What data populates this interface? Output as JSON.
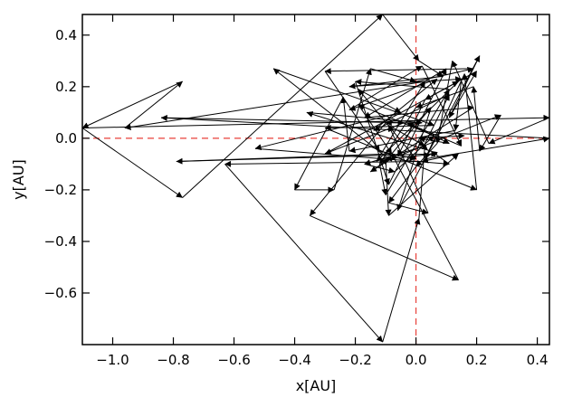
{
  "chart_data": {
    "type": "line",
    "title": "",
    "xlabel": "x[AU]",
    "ylabel": "y[AU]",
    "xlim": [
      -1.1,
      0.44
    ],
    "ylim": [
      -0.8,
      0.48
    ],
    "x_ticks": [
      -1.0,
      -0.8,
      -0.6,
      -0.4,
      -0.2,
      0.0,
      0.2,
      0.4
    ],
    "x_tick_labels": [
      "−1.0",
      "−0.8",
      "−0.6",
      "−0.4",
      "−0.2",
      "0.0",
      "0.2",
      "0.4"
    ],
    "y_ticks": [
      -0.6,
      -0.4,
      -0.2,
      0.0,
      0.2,
      0.4
    ],
    "y_tick_labels": [
      "−0.6",
      "−0.4",
      "−0.2",
      "0.0",
      "0.2",
      "0.4"
    ],
    "grid": false,
    "reference_lines": {
      "x": 0.0,
      "y": 0.0,
      "color": "#e8413a",
      "style": "dashed"
    },
    "series": [
      {
        "color": "#000000",
        "arrows": true,
        "points": [
          [
            -1.1,
            0.04
          ],
          [
            -0.77,
            -0.23
          ],
          [
            -0.11,
            0.48
          ],
          [
            0.01,
            0.3
          ],
          [
            0.09,
            0.24
          ],
          [
            -0.22,
            0.2
          ],
          [
            0.15,
            0.23
          ],
          [
            0.13,
            0.03
          ],
          [
            -0.22,
            -0.05
          ],
          [
            -0.24,
            0.16
          ],
          [
            -0.4,
            -0.2
          ],
          [
            -0.27,
            -0.2
          ],
          [
            -0.15,
            0.27
          ],
          [
            0.0,
            0.22
          ],
          [
            0.19,
            0.27
          ],
          [
            -0.3,
            0.26
          ],
          [
            -0.12,
            -0.05
          ],
          [
            0.0,
            -0.08
          ],
          [
            -0.19,
            0.19
          ],
          [
            -0.05,
            0.1
          ],
          [
            -0.53,
            -0.04
          ],
          [
            0.11,
            -0.1
          ],
          [
            0.05,
            -0.05
          ],
          [
            -0.36,
            0.1
          ],
          [
            0.02,
            0.06
          ],
          [
            -0.1,
            0.06
          ],
          [
            -0.35,
            -0.3
          ],
          [
            0.14,
            -0.55
          ],
          [
            -0.08,
            -0.06
          ],
          [
            0.05,
            0.12
          ],
          [
            -0.06,
            -0.28
          ],
          [
            0.21,
            0.32
          ],
          [
            0.11,
            0.08
          ],
          [
            0.2,
            0.26
          ],
          [
            0.03,
            0.15
          ],
          [
            -0.06,
            -0.07
          ],
          [
            0.28,
            0.09
          ],
          [
            0.21,
            -0.05
          ],
          [
            0.19,
            0.2
          ],
          [
            0.0,
            0.12
          ],
          [
            -0.12,
            -0.1
          ],
          [
            -0.1,
            -0.22
          ],
          [
            0.11,
            0.19
          ],
          [
            -0.2,
            0.22
          ],
          [
            -0.09,
            -0.18
          ],
          [
            0.1,
            0.27
          ],
          [
            -0.17,
            0.08
          ],
          [
            0.19,
            0.12
          ],
          [
            -0.15,
            -0.13
          ],
          [
            -0.09,
            -0.08
          ],
          [
            -0.47,
            0.27
          ],
          [
            0.06,
            0.05
          ],
          [
            -0.3,
            0.04
          ],
          [
            0.2,
            -0.2
          ],
          [
            0.16,
            0.25
          ],
          [
            0.03,
            -0.08
          ],
          [
            0.44,
            0.0
          ],
          [
            -0.84,
            0.08
          ],
          [
            -0.04,
            0.06
          ],
          [
            -0.3,
            -0.06
          ],
          [
            0.14,
            0.22
          ],
          [
            -0.13,
            -0.09
          ],
          [
            0.03,
            0.22
          ],
          [
            -0.96,
            0.04
          ],
          [
            -0.77,
            0.22
          ],
          [
            -1.1,
            0.04
          ],
          [
            0.44,
            0.08
          ],
          [
            0.24,
            -0.02
          ],
          [
            0.12,
            0.3
          ],
          [
            0.07,
            -0.02
          ],
          [
            0.0,
            -0.11
          ],
          [
            -0.09,
            -0.25
          ],
          [
            0.04,
            -0.29
          ],
          [
            -0.09,
            0.05
          ],
          [
            0.03,
            -0.03
          ],
          [
            -0.17,
            -0.1
          ],
          [
            -0.07,
            -0.13
          ],
          [
            0.06,
            0.01
          ],
          [
            -0.19,
            0.13
          ],
          [
            -0.08,
            -0.06
          ],
          [
            -0.79,
            -0.09
          ],
          [
            0.07,
            -0.06
          ],
          [
            -0.1,
            -0.08
          ],
          [
            -0.09,
            -0.3
          ],
          [
            0.14,
            -0.06
          ],
          [
            0.02,
            -0.09
          ],
          [
            -0.63,
            -0.1
          ],
          [
            -0.11,
            -0.79
          ],
          [
            0.01,
            -0.31
          ],
          [
            0.03,
            -0.02
          ],
          [
            0.11,
            0.17
          ],
          [
            -0.14,
            0.03
          ],
          [
            0.07,
            0.23
          ],
          [
            -0.22,
            0.11
          ],
          [
            0.02,
            0.28
          ],
          [
            0.15,
            -0.03
          ],
          [
            -0.03,
            0.06
          ],
          [
            0.11,
            -0.02
          ],
          [
            0.01,
            0.0
          ],
          [
            0.16,
            0.01
          ]
        ]
      }
    ]
  }
}
